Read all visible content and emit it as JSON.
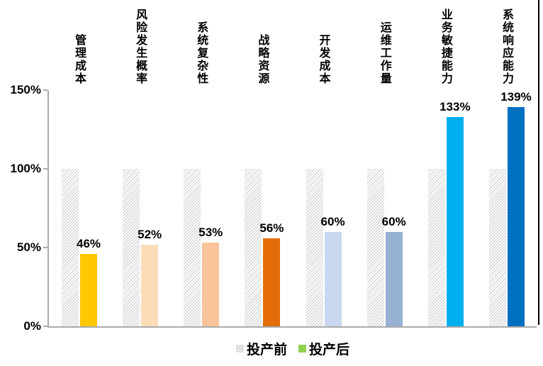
{
  "chart_data": {
    "type": "bar",
    "title": "",
    "categories": [
      "管理成本",
      "风险发生概率",
      "系统复杂性",
      "战略资源",
      "开发成本",
      "运维工作量",
      "业务敏捷能力",
      "系统响应能力"
    ],
    "series": [
      {
        "name": "投产前",
        "values": [
          100,
          100,
          100,
          100,
          100,
          100,
          100,
          100
        ],
        "style": "hatched",
        "legend_swatch": "hatch"
      },
      {
        "name": "投产后",
        "values": [
          46,
          52,
          53,
          56,
          60,
          60,
          133,
          139
        ],
        "colors": [
          "#FFC800",
          "#FBDCB9",
          "#F9C499",
          "#E36C09",
          "#C9D8F0",
          "#97B1D5",
          "#00AFF0",
          "#0070C0"
        ],
        "legend_swatch": "#92D050"
      }
    ],
    "value_labels": [
      "46%",
      "52%",
      "53%",
      "56%",
      "60%",
      "60%",
      "133%",
      "139%"
    ],
    "yticks": [
      {
        "label": "150%",
        "value": 150
      },
      {
        "label": "100%",
        "value": 100
      },
      {
        "label": "50%",
        "value": 50
      },
      {
        "label": "0%",
        "value": 0
      }
    ],
    "ylim": [
      0,
      150
    ],
    "grid": false,
    "legend_position": "bottom"
  },
  "colors": {
    "axis": "#ababab",
    "hatch_line": "#c9c9c9",
    "page_border": "#000000",
    "text": "#000000",
    "legend_after_swatch": "#92D050"
  }
}
